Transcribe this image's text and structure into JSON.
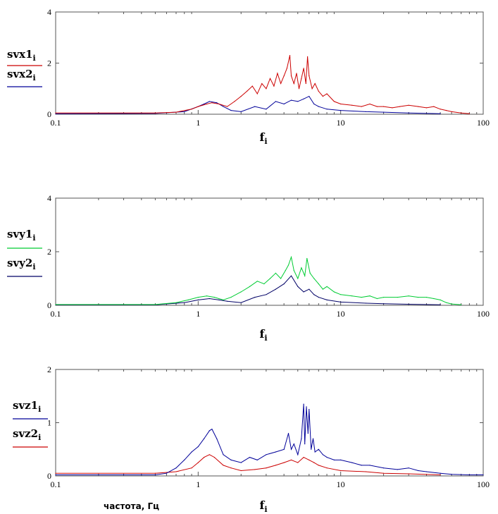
{
  "chart_data": [
    {
      "type": "line",
      "x_scale": "log",
      "xlim": [
        0.1,
        100
      ],
      "ylim": [
        0,
        4
      ],
      "x_ticks": [
        0.1,
        1,
        10,
        100
      ],
      "x_tick_labels": [
        "0.1",
        "1",
        "10",
        "100"
      ],
      "y_ticks": [
        0,
        2,
        4
      ],
      "y_tick_labels": [
        "0",
        "2",
        "4"
      ],
      "xlabel": {
        "base": "f",
        "sub": "i"
      },
      "series": [
        {
          "name": {
            "base": "svx1",
            "sub": "i"
          },
          "color": "#cc0000",
          "x": [
            0.1,
            0.5,
            0.7,
            0.9,
            1.0,
            1.15,
            1.25,
            1.4,
            1.6,
            1.8,
            2.0,
            2.2,
            2.4,
            2.6,
            2.8,
            3.0,
            3.2,
            3.4,
            3.6,
            3.8,
            4.0,
            4.2,
            4.4,
            4.5,
            4.7,
            4.9,
            5.1,
            5.3,
            5.5,
            5.7,
            5.85,
            6.0,
            6.3,
            6.6,
            7.0,
            7.5,
            8.0,
            9.0,
            10,
            12,
            14,
            16,
            18,
            20,
            23,
            26,
            30,
            35,
            40,
            45,
            50,
            55,
            60,
            70,
            80
          ],
          "y": [
            0.05,
            0.05,
            0.08,
            0.2,
            0.3,
            0.4,
            0.45,
            0.4,
            0.3,
            0.5,
            0.7,
            0.9,
            1.1,
            0.8,
            1.2,
            1.0,
            1.4,
            1.1,
            1.6,
            1.2,
            1.5,
            1.8,
            2.3,
            1.5,
            1.2,
            1.6,
            1.0,
            1.4,
            1.8,
            1.2,
            2.25,
            1.5,
            1.0,
            1.2,
            0.9,
            0.7,
            0.8,
            0.5,
            0.4,
            0.35,
            0.3,
            0.4,
            0.3,
            0.3,
            0.25,
            0.3,
            0.35,
            0.3,
            0.25,
            0.3,
            0.2,
            0.15,
            0.1,
            0.05,
            0.02
          ]
        },
        {
          "name": {
            "base": "svx2",
            "sub": "i"
          },
          "color": "#000099",
          "x": [
            0.1,
            0.5,
            0.8,
            1.0,
            1.1,
            1.2,
            1.35,
            1.5,
            1.7,
            2.0,
            2.5,
            3.0,
            3.5,
            4.0,
            4.5,
            5.0,
            5.5,
            6.0,
            6.5,
            7.0,
            8.0,
            10,
            15,
            20,
            30,
            50
          ],
          "y": [
            0.02,
            0.03,
            0.1,
            0.3,
            0.4,
            0.5,
            0.45,
            0.3,
            0.15,
            0.1,
            0.3,
            0.2,
            0.5,
            0.4,
            0.55,
            0.5,
            0.6,
            0.7,
            0.4,
            0.3,
            0.2,
            0.15,
            0.1,
            0.08,
            0.05,
            0.02
          ]
        }
      ]
    },
    {
      "type": "line",
      "x_scale": "log",
      "xlim": [
        0.1,
        100
      ],
      "ylim": [
        0,
        4
      ],
      "x_ticks": [
        0.1,
        1,
        10,
        100
      ],
      "x_tick_labels": [
        "0.1",
        "1",
        "10",
        "100"
      ],
      "y_ticks": [
        0,
        2,
        4
      ],
      "y_tick_labels": [
        "0",
        "2",
        "4"
      ],
      "xlabel": {
        "base": "f",
        "sub": "i"
      },
      "series": [
        {
          "name": {
            "base": "svy1",
            "sub": "i"
          },
          "color": "#00cc33",
          "x": [
            0.1,
            0.5,
            0.7,
            0.85,
            1.0,
            1.15,
            1.3,
            1.5,
            1.7,
            2.0,
            2.3,
            2.6,
            2.9,
            3.2,
            3.5,
            3.8,
            4.1,
            4.3,
            4.5,
            4.7,
            5.0,
            5.3,
            5.6,
            5.8,
            6.1,
            6.5,
            7.0,
            7.5,
            8.0,
            9.0,
            10,
            12,
            14,
            16,
            18,
            20,
            25,
            30,
            35,
            40,
            45,
            50,
            55,
            60,
            70
          ],
          "y": [
            0.03,
            0.03,
            0.1,
            0.2,
            0.3,
            0.35,
            0.3,
            0.2,
            0.3,
            0.5,
            0.7,
            0.9,
            0.8,
            1.0,
            1.2,
            1.0,
            1.3,
            1.5,
            1.8,
            1.3,
            1.0,
            1.4,
            1.1,
            1.75,
            1.2,
            1.0,
            0.8,
            0.6,
            0.7,
            0.5,
            0.4,
            0.35,
            0.3,
            0.35,
            0.25,
            0.3,
            0.3,
            0.35,
            0.3,
            0.3,
            0.25,
            0.2,
            0.1,
            0.05,
            0.02
          ]
        },
        {
          "name": {
            "base": "svy2",
            "sub": "i"
          },
          "color": "#000066",
          "x": [
            0.1,
            0.5,
            0.8,
            1.0,
            1.2,
            1.4,
            1.6,
            2.0,
            2.5,
            3.0,
            3.5,
            4.0,
            4.5,
            5.0,
            5.5,
            6.0,
            6.5,
            7.0,
            8.0,
            10,
            15,
            20,
            30,
            50
          ],
          "y": [
            0.02,
            0.02,
            0.1,
            0.2,
            0.25,
            0.2,
            0.15,
            0.1,
            0.3,
            0.4,
            0.6,
            0.8,
            1.1,
            0.7,
            0.5,
            0.6,
            0.4,
            0.3,
            0.2,
            0.12,
            0.08,
            0.06,
            0.04,
            0.02
          ]
        }
      ]
    },
    {
      "type": "line",
      "x_scale": "log",
      "xlim": [
        0.1,
        100
      ],
      "ylim": [
        0,
        2
      ],
      "x_ticks": [
        0.1,
        1,
        10,
        100
      ],
      "x_tick_labels": [
        "0.1",
        "1",
        "10",
        "100"
      ],
      "y_ticks": [
        0,
        1,
        2
      ],
      "y_tick_labels": [
        "0",
        "1",
        "2"
      ],
      "xlabel": {
        "base": "f",
        "sub": "i"
      },
      "x_caption": "частота, Гц",
      "series": [
        {
          "name": {
            "base": "svz1",
            "sub": "i"
          },
          "color": "#000099",
          "x": [
            0.1,
            0.5,
            0.6,
            0.7,
            0.8,
            0.9,
            1.0,
            1.1,
            1.2,
            1.25,
            1.35,
            1.5,
            1.7,
            2.0,
            2.3,
            2.6,
            3.0,
            3.5,
            4.0,
            4.3,
            4.5,
            4.7,
            5.0,
            5.3,
            5.5,
            5.6,
            5.75,
            5.9,
            6.0,
            6.2,
            6.4,
            6.6,
            7.0,
            7.5,
            8.0,
            9.0,
            10,
            12,
            14,
            16,
            20,
            25,
            30,
            35,
            40,
            50,
            60,
            80,
            100
          ],
          "y": [
            0.02,
            0.02,
            0.05,
            0.15,
            0.3,
            0.45,
            0.55,
            0.7,
            0.85,
            0.88,
            0.7,
            0.4,
            0.3,
            0.25,
            0.35,
            0.3,
            0.4,
            0.45,
            0.5,
            0.8,
            0.5,
            0.6,
            0.4,
            0.7,
            1.35,
            0.6,
            1.3,
            0.8,
            1.25,
            0.5,
            0.7,
            0.45,
            0.5,
            0.4,
            0.35,
            0.3,
            0.3,
            0.25,
            0.2,
            0.2,
            0.15,
            0.12,
            0.15,
            0.1,
            0.08,
            0.05,
            0.03,
            0.02,
            0.02
          ]
        },
        {
          "name": {
            "base": "svz2",
            "sub": "i"
          },
          "color": "#cc0000",
          "x": [
            0.1,
            0.5,
            0.7,
            0.9,
            1.0,
            1.1,
            1.2,
            1.3,
            1.5,
            1.7,
            2.0,
            2.5,
            3.0,
            3.5,
            4.0,
            4.5,
            5.0,
            5.5,
            6.0,
            6.5,
            7.0,
            8.0,
            10,
            15,
            20,
            30,
            50
          ],
          "y": [
            0.05,
            0.05,
            0.08,
            0.15,
            0.25,
            0.35,
            0.4,
            0.35,
            0.2,
            0.15,
            0.1,
            0.12,
            0.15,
            0.2,
            0.25,
            0.3,
            0.25,
            0.35,
            0.3,
            0.25,
            0.2,
            0.15,
            0.1,
            0.08,
            0.05,
            0.04,
            0.02
          ]
        }
      ]
    }
  ]
}
